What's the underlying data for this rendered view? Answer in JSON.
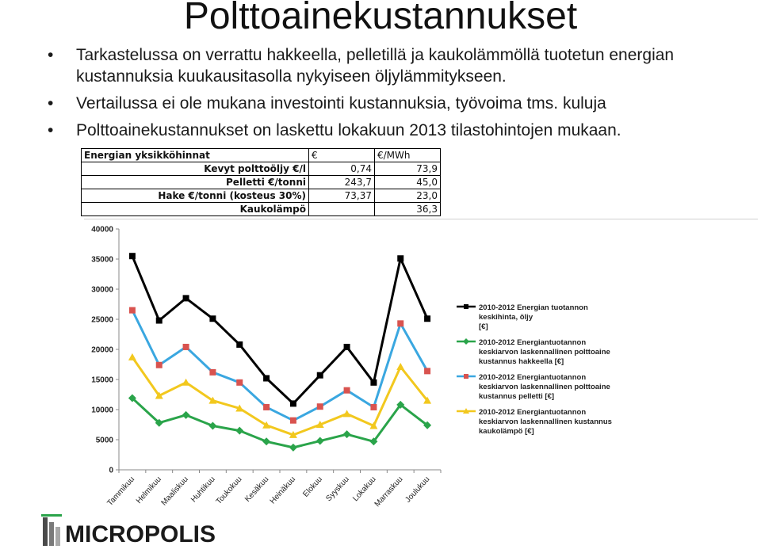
{
  "title": "Polttoainekustannukset",
  "bullets": [
    "Tarkastelussa on verrattu hakkeella, pelletillä ja kaukolämmöllä tuotetun energian kustannuksia kuukausitasolla nykyiseen öljylämmitykseen.",
    "Vertailussa ei ole mukana investointi kustannuksia, työvoima tms. kuluja",
    "Polttoainekustannukset on laskettu lokakuun 2013 tilastohintojen mukaan."
  ],
  "price_table": {
    "header": [
      "Energian yksikköhinnat",
      "€",
      "€/MWh"
    ],
    "rows": [
      [
        "Kevyt polttoöljy €/l",
        "0,74",
        "73,9"
      ],
      [
        "Pelletti €/tonni",
        "243,7",
        "45,0"
      ],
      [
        "Hake €/tonni (kosteus 30%)",
        "73,37",
        "23,0"
      ],
      [
        "Kaukolämpö",
        "",
        "36,3"
      ]
    ]
  },
  "logo_text": "MICROPOLIS",
  "chart_data": {
    "type": "line",
    "categories": [
      "Tammikuu",
      "Helmikuu",
      "Maaliskuu",
      "Huhtikuu",
      "Toukokuu",
      "Kesäkuu",
      "Heinäkuu",
      "Elokuu",
      "Syyskuu",
      "Lokakuu",
      "Marraskuu",
      "Joulukuu"
    ],
    "ylim": [
      0,
      40000
    ],
    "yticks": [
      "0",
      "5000",
      "10000",
      "15000",
      "20000",
      "25000",
      "30000",
      "35000",
      "40000"
    ],
    "grid": false,
    "legend_position": "right",
    "series": [
      {
        "name": "2010-2012 Energian tuotannon keskihinta, öljy [€]",
        "legend_lines": [
          "2010-2012 Energian tuotannon",
          "keskihinta, öljy",
          "[€]"
        ],
        "color": "#000000",
        "marker": "square",
        "values": [
          35500,
          24800,
          28500,
          25100,
          20800,
          15200,
          11000,
          15700,
          20400,
          14500,
          35100,
          25100
        ]
      },
      {
        "name": "2010-2012 Energiantuotannon keskiarvon laskennallinen polttoaine kustannus hakkeella [€]",
        "legend_lines": [
          "2010-2012 Energiantuotannon",
          "keskiarvon laskennallinen polttoaine",
          "kustannus hakkeella [€]"
        ],
        "color": "#2aa44a",
        "marker": "diamond",
        "values": [
          11900,
          7800,
          9100,
          7300,
          6500,
          4700,
          3700,
          4800,
          5900,
          4700,
          10800,
          7400
        ]
      },
      {
        "name": "2010-2012 Energiantuotannon keskiarvon laskennallinen polttoaine kustannus pelletti [€]",
        "legend_lines": [
          "2010-2012 Energiantuotannon",
          "keskiarvon laskennallinen polttoaine",
          "kustannus pelletti [€]"
        ],
        "color": "#3aa7e0",
        "marker": "square",
        "values": [
          26500,
          17400,
          20400,
          16200,
          14500,
          10400,
          8200,
          10500,
          13200,
          10400,
          24300,
          16400
        ]
      },
      {
        "name": "2010-2012 Energiantuotannon keskiarvon laskennallinen kustannus kaukolämpö [€]",
        "legend_lines": [
          "2010-2012 Energiantuotannon",
          "keskiarvon laskennallinen kustannus",
          "kaukolämpö [€]"
        ],
        "color": "#f2c81e",
        "marker": "triangle",
        "values": [
          18700,
          12300,
          14500,
          11500,
          10200,
          7400,
          5800,
          7500,
          9300,
          7300,
          17100,
          11500
        ]
      }
    ]
  }
}
